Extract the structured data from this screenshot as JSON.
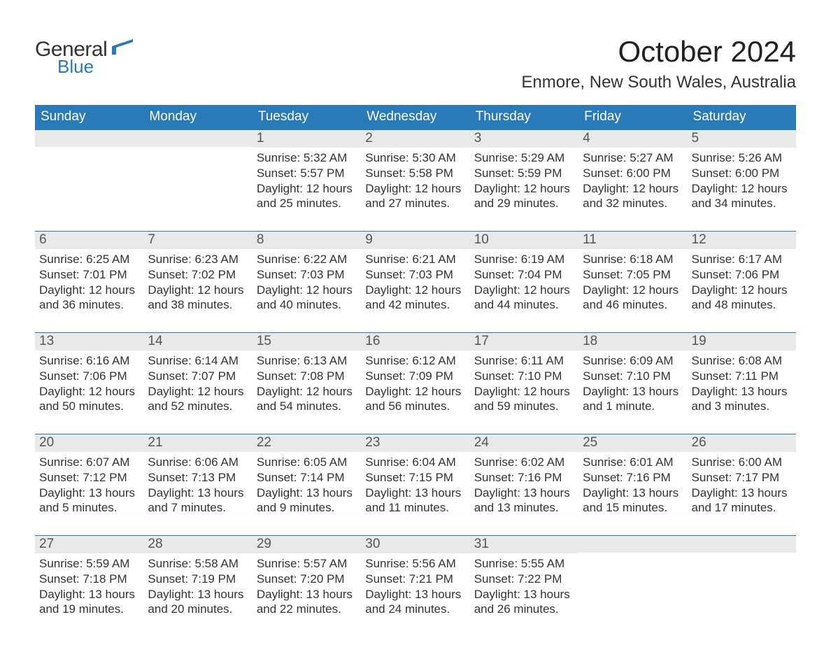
{
  "brand": {
    "text1": "General",
    "text2": "Blue",
    "color_primary": "#2a7ab8",
    "color_text": "#333333"
  },
  "title": "October 2024",
  "location": "Enmore, New South Wales, Australia",
  "colors": {
    "header_bg": "#2a7ab8",
    "header_text": "#ffffff",
    "daynum_bg": "#e9e9e9",
    "rule": "#2a7ab8",
    "page_bg": "#ffffff",
    "body_text": "#333333"
  },
  "day_headers": [
    "Sunday",
    "Monday",
    "Tuesday",
    "Wednesday",
    "Thursday",
    "Friday",
    "Saturday"
  ],
  "weeks": [
    [
      {
        "n": "",
        "sunrise": "",
        "sunset": "",
        "daylight": ""
      },
      {
        "n": "",
        "sunrise": "",
        "sunset": "",
        "daylight": ""
      },
      {
        "n": "1",
        "sunrise": "Sunrise: 5:32 AM",
        "sunset": "Sunset: 5:57 PM",
        "daylight": "Daylight: 12 hours and 25 minutes."
      },
      {
        "n": "2",
        "sunrise": "Sunrise: 5:30 AM",
        "sunset": "Sunset: 5:58 PM",
        "daylight": "Daylight: 12 hours and 27 minutes."
      },
      {
        "n": "3",
        "sunrise": "Sunrise: 5:29 AM",
        "sunset": "Sunset: 5:59 PM",
        "daylight": "Daylight: 12 hours and 29 minutes."
      },
      {
        "n": "4",
        "sunrise": "Sunrise: 5:27 AM",
        "sunset": "Sunset: 6:00 PM",
        "daylight": "Daylight: 12 hours and 32 minutes."
      },
      {
        "n": "5",
        "sunrise": "Sunrise: 5:26 AM",
        "sunset": "Sunset: 6:00 PM",
        "daylight": "Daylight: 12 hours and 34 minutes."
      }
    ],
    [
      {
        "n": "6",
        "sunrise": "Sunrise: 6:25 AM",
        "sunset": "Sunset: 7:01 PM",
        "daylight": "Daylight: 12 hours and 36 minutes."
      },
      {
        "n": "7",
        "sunrise": "Sunrise: 6:23 AM",
        "sunset": "Sunset: 7:02 PM",
        "daylight": "Daylight: 12 hours and 38 minutes."
      },
      {
        "n": "8",
        "sunrise": "Sunrise: 6:22 AM",
        "sunset": "Sunset: 7:03 PM",
        "daylight": "Daylight: 12 hours and 40 minutes."
      },
      {
        "n": "9",
        "sunrise": "Sunrise: 6:21 AM",
        "sunset": "Sunset: 7:03 PM",
        "daylight": "Daylight: 12 hours and 42 minutes."
      },
      {
        "n": "10",
        "sunrise": "Sunrise: 6:19 AM",
        "sunset": "Sunset: 7:04 PM",
        "daylight": "Daylight: 12 hours and 44 minutes."
      },
      {
        "n": "11",
        "sunrise": "Sunrise: 6:18 AM",
        "sunset": "Sunset: 7:05 PM",
        "daylight": "Daylight: 12 hours and 46 minutes."
      },
      {
        "n": "12",
        "sunrise": "Sunrise: 6:17 AM",
        "sunset": "Sunset: 7:06 PM",
        "daylight": "Daylight: 12 hours and 48 minutes."
      }
    ],
    [
      {
        "n": "13",
        "sunrise": "Sunrise: 6:16 AM",
        "sunset": "Sunset: 7:06 PM",
        "daylight": "Daylight: 12 hours and 50 minutes."
      },
      {
        "n": "14",
        "sunrise": "Sunrise: 6:14 AM",
        "sunset": "Sunset: 7:07 PM",
        "daylight": "Daylight: 12 hours and 52 minutes."
      },
      {
        "n": "15",
        "sunrise": "Sunrise: 6:13 AM",
        "sunset": "Sunset: 7:08 PM",
        "daylight": "Daylight: 12 hours and 54 minutes."
      },
      {
        "n": "16",
        "sunrise": "Sunrise: 6:12 AM",
        "sunset": "Sunset: 7:09 PM",
        "daylight": "Daylight: 12 hours and 56 minutes."
      },
      {
        "n": "17",
        "sunrise": "Sunrise: 6:11 AM",
        "sunset": "Sunset: 7:10 PM",
        "daylight": "Daylight: 12 hours and 59 minutes."
      },
      {
        "n": "18",
        "sunrise": "Sunrise: 6:09 AM",
        "sunset": "Sunset: 7:10 PM",
        "daylight": "Daylight: 13 hours and 1 minute."
      },
      {
        "n": "19",
        "sunrise": "Sunrise: 6:08 AM",
        "sunset": "Sunset: 7:11 PM",
        "daylight": "Daylight: 13 hours and 3 minutes."
      }
    ],
    [
      {
        "n": "20",
        "sunrise": "Sunrise: 6:07 AM",
        "sunset": "Sunset: 7:12 PM",
        "daylight": "Daylight: 13 hours and 5 minutes."
      },
      {
        "n": "21",
        "sunrise": "Sunrise: 6:06 AM",
        "sunset": "Sunset: 7:13 PM",
        "daylight": "Daylight: 13 hours and 7 minutes."
      },
      {
        "n": "22",
        "sunrise": "Sunrise: 6:05 AM",
        "sunset": "Sunset: 7:14 PM",
        "daylight": "Daylight: 13 hours and 9 minutes."
      },
      {
        "n": "23",
        "sunrise": "Sunrise: 6:04 AM",
        "sunset": "Sunset: 7:15 PM",
        "daylight": "Daylight: 13 hours and 11 minutes."
      },
      {
        "n": "24",
        "sunrise": "Sunrise: 6:02 AM",
        "sunset": "Sunset: 7:16 PM",
        "daylight": "Daylight: 13 hours and 13 minutes."
      },
      {
        "n": "25",
        "sunrise": "Sunrise: 6:01 AM",
        "sunset": "Sunset: 7:16 PM",
        "daylight": "Daylight: 13 hours and 15 minutes."
      },
      {
        "n": "26",
        "sunrise": "Sunrise: 6:00 AM",
        "sunset": "Sunset: 7:17 PM",
        "daylight": "Daylight: 13 hours and 17 minutes."
      }
    ],
    [
      {
        "n": "27",
        "sunrise": "Sunrise: 5:59 AM",
        "sunset": "Sunset: 7:18 PM",
        "daylight": "Daylight: 13 hours and 19 minutes."
      },
      {
        "n": "28",
        "sunrise": "Sunrise: 5:58 AM",
        "sunset": "Sunset: 7:19 PM",
        "daylight": "Daylight: 13 hours and 20 minutes."
      },
      {
        "n": "29",
        "sunrise": "Sunrise: 5:57 AM",
        "sunset": "Sunset: 7:20 PM",
        "daylight": "Daylight: 13 hours and 22 minutes."
      },
      {
        "n": "30",
        "sunrise": "Sunrise: 5:56 AM",
        "sunset": "Sunset: 7:21 PM",
        "daylight": "Daylight: 13 hours and 24 minutes."
      },
      {
        "n": "31",
        "sunrise": "Sunrise: 5:55 AM",
        "sunset": "Sunset: 7:22 PM",
        "daylight": "Daylight: 13 hours and 26 minutes."
      },
      {
        "n": "",
        "sunrise": "",
        "sunset": "",
        "daylight": ""
      },
      {
        "n": "",
        "sunrise": "",
        "sunset": "",
        "daylight": ""
      }
    ]
  ]
}
